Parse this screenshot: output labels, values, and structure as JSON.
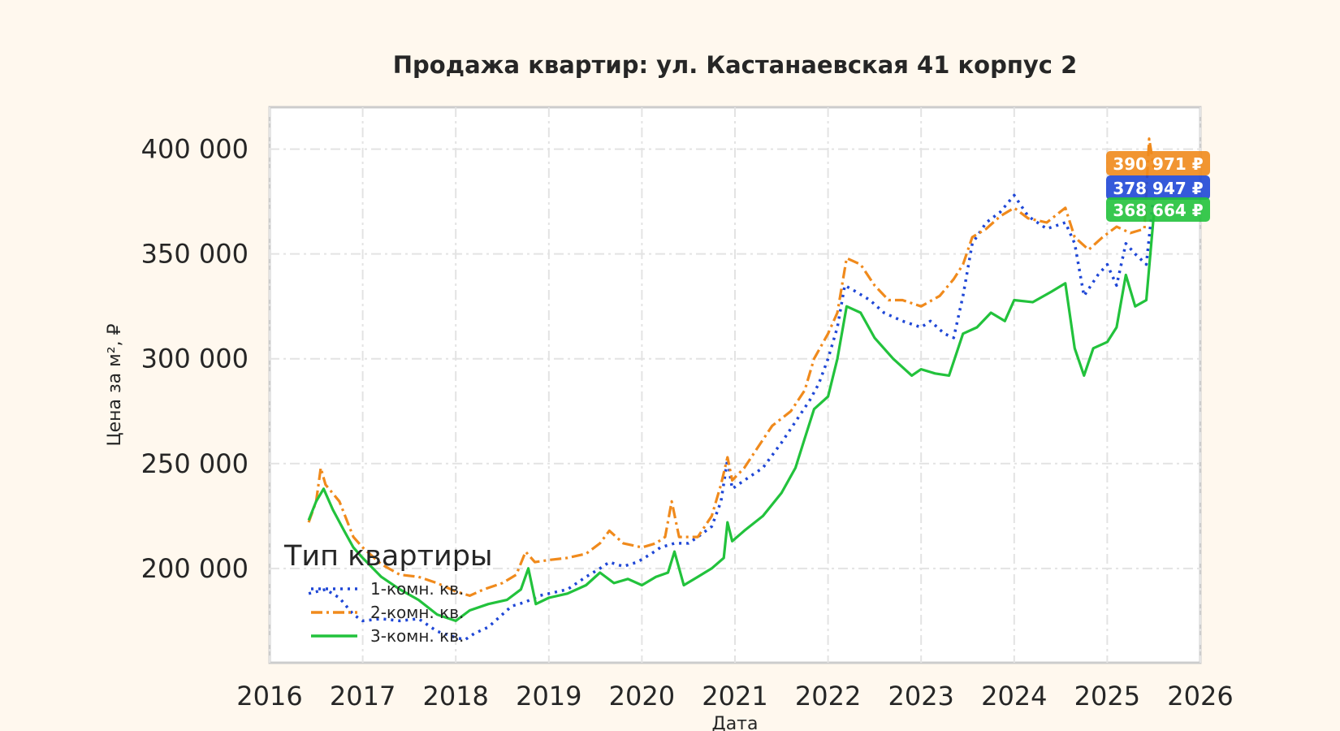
{
  "chart_data": {
    "type": "line",
    "title": "Продажа квартир: ул. Кастанаевская 41 корпус 2",
    "xlabel": "Дата",
    "ylabel": "Цена за м², ₽",
    "xlim": [
      2016.0,
      2026.0
    ],
    "ylim": [
      155000,
      420000
    ],
    "x_ticks": [
      "2016",
      "2017",
      "2018",
      "2019",
      "2020",
      "2021",
      "2022",
      "2023",
      "2024",
      "2025",
      "2026"
    ],
    "y_ticks": [
      {
        "value": 200000,
        "label": "200 000"
      },
      {
        "value": 250000,
        "label": "250 000"
      },
      {
        "value": 300000,
        "label": "300 000"
      },
      {
        "value": 350000,
        "label": "350 000"
      },
      {
        "value": 400000,
        "label": "400 000"
      }
    ],
    "grid": true,
    "legend": {
      "title": "Тип квартиры",
      "placement": "lower-left"
    },
    "series": [
      {
        "name": "1-комн. кв.",
        "color": "#1f47d6",
        "style": "dotted",
        "last_value_label": "378 947 ₽",
        "points": [
          [
            2016.42,
            188000
          ],
          [
            2016.6,
            190000
          ],
          [
            2016.75,
            186000
          ],
          [
            2016.9,
            178000
          ],
          [
            2017.0,
            175000
          ],
          [
            2017.2,
            176000
          ],
          [
            2017.4,
            175000
          ],
          [
            2017.6,
            176000
          ],
          [
            2017.8,
            170000
          ],
          [
            2018.0,
            167000
          ],
          [
            2018.1,
            166000
          ],
          [
            2018.2,
            169000
          ],
          [
            2018.35,
            172000
          ],
          [
            2018.5,
            178000
          ],
          [
            2018.6,
            182000
          ],
          [
            2018.75,
            184000
          ],
          [
            2018.9,
            187000
          ],
          [
            2019.0,
            188000
          ],
          [
            2019.2,
            190000
          ],
          [
            2019.4,
            196000
          ],
          [
            2019.55,
            200000
          ],
          [
            2019.65,
            203000
          ],
          [
            2019.8,
            201000
          ],
          [
            2019.95,
            203000
          ],
          [
            2020.1,
            207000
          ],
          [
            2020.2,
            210000
          ],
          [
            2020.35,
            212000
          ],
          [
            2020.5,
            212000
          ],
          [
            2020.6,
            215000
          ],
          [
            2020.75,
            220000
          ],
          [
            2020.85,
            232000
          ],
          [
            2020.92,
            252000
          ],
          [
            2020.97,
            238000
          ],
          [
            2021.1,
            242000
          ],
          [
            2021.3,
            248000
          ],
          [
            2021.5,
            260000
          ],
          [
            2021.65,
            270000
          ],
          [
            2021.8,
            280000
          ],
          [
            2021.9,
            288000
          ],
          [
            2022.0,
            300000
          ],
          [
            2022.1,
            315000
          ],
          [
            2022.18,
            335000
          ],
          [
            2022.3,
            332000
          ],
          [
            2022.45,
            328000
          ],
          [
            2022.6,
            322000
          ],
          [
            2022.8,
            318000
          ],
          [
            2023.0,
            315000
          ],
          [
            2023.1,
            318000
          ],
          [
            2023.25,
            312000
          ],
          [
            2023.35,
            310000
          ],
          [
            2023.45,
            330000
          ],
          [
            2023.55,
            355000
          ],
          [
            2023.7,
            365000
          ],
          [
            2023.85,
            370000
          ],
          [
            2024.0,
            378000
          ],
          [
            2024.15,
            368000
          ],
          [
            2024.35,
            362000
          ],
          [
            2024.55,
            365000
          ],
          [
            2024.65,
            355000
          ],
          [
            2024.75,
            330000
          ],
          [
            2024.9,
            340000
          ],
          [
            2025.0,
            345000
          ],
          [
            2025.1,
            335000
          ],
          [
            2025.2,
            355000
          ],
          [
            2025.3,
            350000
          ],
          [
            2025.42,
            345000
          ],
          [
            2025.5,
            378947
          ]
        ]
      },
      {
        "name": "2-комн. кв.",
        "color": "#f08a1c",
        "style": "dashdot",
        "last_value_label": "390 971 ₽",
        "points": [
          [
            2016.42,
            222000
          ],
          [
            2016.5,
            232000
          ],
          [
            2016.55,
            248000
          ],
          [
            2016.6,
            240000
          ],
          [
            2016.75,
            232000
          ],
          [
            2016.9,
            215000
          ],
          [
            2017.0,
            210000
          ],
          [
            2017.2,
            202000
          ],
          [
            2017.4,
            197000
          ],
          [
            2017.6,
            196000
          ],
          [
            2017.8,
            193000
          ],
          [
            2018.0,
            189000
          ],
          [
            2018.15,
            187000
          ],
          [
            2018.3,
            190000
          ],
          [
            2018.5,
            193000
          ],
          [
            2018.65,
            197000
          ],
          [
            2018.75,
            208000
          ],
          [
            2018.85,
            203000
          ],
          [
            2019.0,
            204000
          ],
          [
            2019.2,
            205000
          ],
          [
            2019.4,
            207000
          ],
          [
            2019.55,
            212000
          ],
          [
            2019.65,
            218000
          ],
          [
            2019.8,
            212000
          ],
          [
            2020.0,
            210000
          ],
          [
            2020.15,
            212000
          ],
          [
            2020.25,
            215000
          ],
          [
            2020.32,
            232000
          ],
          [
            2020.4,
            215000
          ],
          [
            2020.6,
            215000
          ],
          [
            2020.75,
            225000
          ],
          [
            2020.85,
            240000
          ],
          [
            2020.92,
            253000
          ],
          [
            2020.97,
            242000
          ],
          [
            2021.1,
            248000
          ],
          [
            2021.25,
            258000
          ],
          [
            2021.4,
            268000
          ],
          [
            2021.6,
            275000
          ],
          [
            2021.75,
            285000
          ],
          [
            2021.85,
            300000
          ],
          [
            2022.0,
            312000
          ],
          [
            2022.1,
            322000
          ],
          [
            2022.2,
            348000
          ],
          [
            2022.35,
            345000
          ],
          [
            2022.5,
            335000
          ],
          [
            2022.65,
            328000
          ],
          [
            2022.8,
            328000
          ],
          [
            2023.0,
            325000
          ],
          [
            2023.2,
            330000
          ],
          [
            2023.35,
            338000
          ],
          [
            2023.45,
            345000
          ],
          [
            2023.55,
            358000
          ],
          [
            2023.7,
            362000
          ],
          [
            2023.85,
            368000
          ],
          [
            2024.0,
            372000
          ],
          [
            2024.15,
            367000
          ],
          [
            2024.35,
            365000
          ],
          [
            2024.55,
            372000
          ],
          [
            2024.65,
            358000
          ],
          [
            2024.8,
            352000
          ],
          [
            2024.95,
            358000
          ],
          [
            2025.1,
            363000
          ],
          [
            2025.25,
            360000
          ],
          [
            2025.4,
            362000
          ],
          [
            2025.45,
            405000
          ],
          [
            2025.5,
            390971
          ]
        ]
      },
      {
        "name": "3-комн. кв.",
        "color": "#22c23c",
        "style": "solid",
        "last_value_label": "368 664 ₽",
        "points": [
          [
            2016.42,
            223000
          ],
          [
            2016.5,
            232000
          ],
          [
            2016.58,
            238000
          ],
          [
            2016.68,
            228000
          ],
          [
            2016.8,
            218000
          ],
          [
            2016.9,
            210000
          ],
          [
            2017.0,
            205000
          ],
          [
            2017.2,
            196000
          ],
          [
            2017.4,
            190000
          ],
          [
            2017.6,
            185000
          ],
          [
            2017.8,
            178000
          ],
          [
            2018.0,
            175000
          ],
          [
            2018.15,
            180000
          ],
          [
            2018.35,
            183000
          ],
          [
            2018.55,
            185000
          ],
          [
            2018.7,
            190000
          ],
          [
            2018.78,
            200000
          ],
          [
            2018.86,
            183000
          ],
          [
            2019.0,
            186000
          ],
          [
            2019.2,
            188000
          ],
          [
            2019.4,
            192000
          ],
          [
            2019.55,
            198000
          ],
          [
            2019.7,
            193000
          ],
          [
            2019.85,
            195000
          ],
          [
            2020.0,
            192000
          ],
          [
            2020.15,
            196000
          ],
          [
            2020.28,
            198000
          ],
          [
            2020.35,
            208000
          ],
          [
            2020.45,
            192000
          ],
          [
            2020.6,
            196000
          ],
          [
            2020.75,
            200000
          ],
          [
            2020.88,
            205000
          ],
          [
            2020.92,
            222000
          ],
          [
            2020.97,
            213000
          ],
          [
            2021.1,
            218000
          ],
          [
            2021.3,
            225000
          ],
          [
            2021.5,
            236000
          ],
          [
            2021.65,
            248000
          ],
          [
            2021.75,
            262000
          ],
          [
            2021.85,
            276000
          ],
          [
            2022.0,
            282000
          ],
          [
            2022.1,
            300000
          ],
          [
            2022.2,
            325000
          ],
          [
            2022.35,
            322000
          ],
          [
            2022.5,
            310000
          ],
          [
            2022.7,
            300000
          ],
          [
            2022.9,
            292000
          ],
          [
            2023.0,
            295000
          ],
          [
            2023.15,
            293000
          ],
          [
            2023.3,
            292000
          ],
          [
            2023.45,
            312000
          ],
          [
            2023.6,
            315000
          ],
          [
            2023.75,
            322000
          ],
          [
            2023.9,
            318000
          ],
          [
            2024.0,
            328000
          ],
          [
            2024.2,
            327000
          ],
          [
            2024.4,
            332000
          ],
          [
            2024.55,
            336000
          ],
          [
            2024.65,
            305000
          ],
          [
            2024.75,
            292000
          ],
          [
            2024.85,
            305000
          ],
          [
            2025.0,
            308000
          ],
          [
            2025.1,
            315000
          ],
          [
            2025.2,
            340000
          ],
          [
            2025.3,
            325000
          ],
          [
            2025.42,
            328000
          ],
          [
            2025.5,
            368664
          ]
        ]
      }
    ]
  }
}
